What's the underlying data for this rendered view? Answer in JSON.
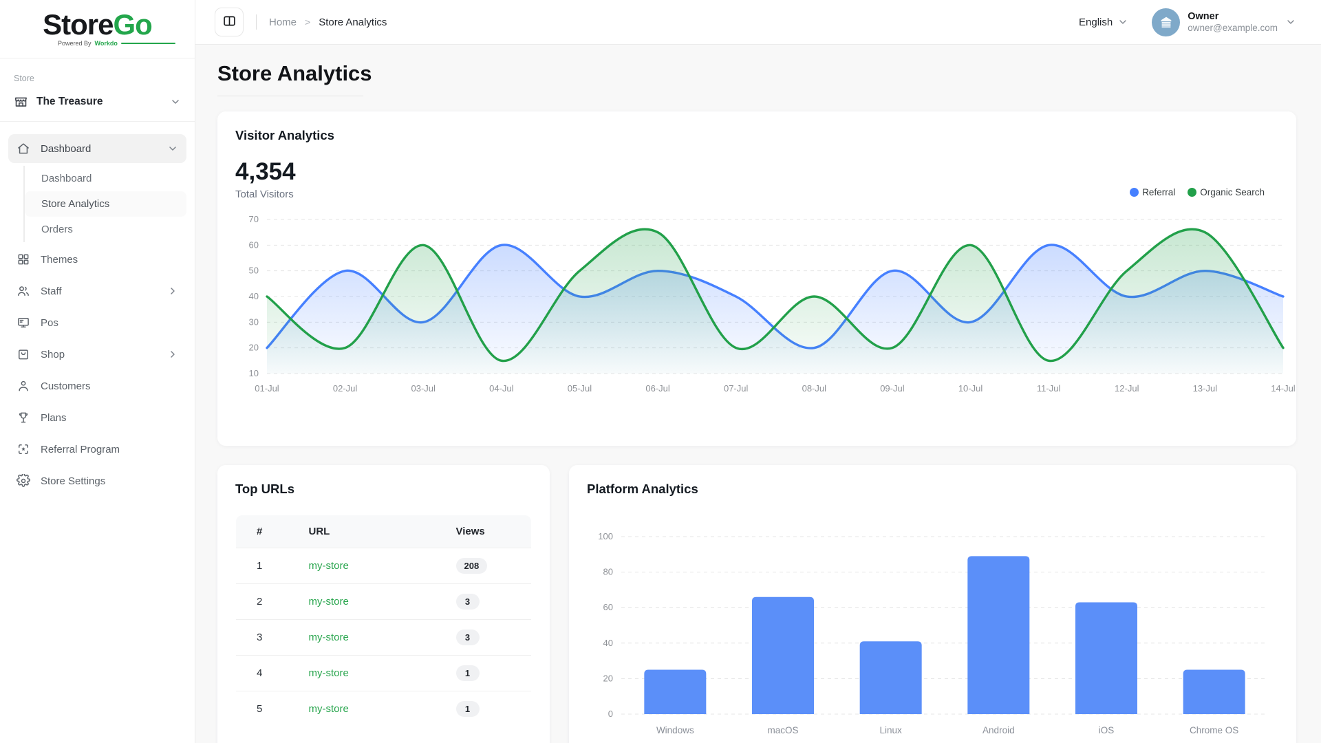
{
  "brand": {
    "name_primary": "Store",
    "name_secondary": "Go",
    "tagline_prefix": "Powered By",
    "tagline_brand": "Workdo"
  },
  "colors": {
    "brand_green": "#23a64b",
    "referral_blue": "#4680ff",
    "organic_green": "#22a04a",
    "bar_blue": "#5b8ff9",
    "grid_gray": "#e4e4e4",
    "tick_gray": "#8e9196"
  },
  "topbar": {
    "breadcrumb": [
      "Home",
      "Store Analytics"
    ],
    "breadcrumb_separator": ">",
    "language": "English",
    "user": {
      "name": "Owner",
      "email": "owner@example.com"
    }
  },
  "sidebar": {
    "section_label": "Store",
    "store_name": "The Treasure",
    "items": [
      {
        "id": "dashboard",
        "label": "Dashboard",
        "icon": "home-icon",
        "chevron": "down",
        "active": true,
        "children": [
          {
            "id": "dashboard-overview",
            "label": "Dashboard",
            "active": false
          },
          {
            "id": "store-analytics",
            "label": "Store Analytics",
            "active": true
          },
          {
            "id": "orders",
            "label": "Orders",
            "active": false
          }
        ]
      },
      {
        "id": "themes",
        "label": "Themes",
        "icon": "grid-icon"
      },
      {
        "id": "staff",
        "label": "Staff",
        "icon": "users-icon",
        "chevron": "right"
      },
      {
        "id": "pos",
        "label": "Pos",
        "icon": "monitor-icon"
      },
      {
        "id": "shop",
        "label": "Shop",
        "icon": "bag-icon",
        "chevron": "right"
      },
      {
        "id": "customers",
        "label": "Customers",
        "icon": "user-icon"
      },
      {
        "id": "plans",
        "label": "Plans",
        "icon": "trophy-icon"
      },
      {
        "id": "referral-program",
        "label": "Referral Program",
        "icon": "referral-icon"
      },
      {
        "id": "store-settings",
        "label": "Store Settings",
        "icon": "gear-icon"
      }
    ]
  },
  "page": {
    "title": "Store Analytics"
  },
  "visitor_card": {
    "title": "Visitor Analytics",
    "total": "4,354",
    "total_label": "Total Visitors",
    "legend": [
      {
        "label": "Referral",
        "color": "#4680ff"
      },
      {
        "label": "Organic Search",
        "color": "#22a04a"
      }
    ]
  },
  "top_urls": {
    "title": "Top URLs",
    "headers": [
      "#",
      "URL",
      "Views"
    ],
    "rows": [
      {
        "rank": "1",
        "url": "my-store",
        "views": "208"
      },
      {
        "rank": "2",
        "url": "my-store",
        "views": "3"
      },
      {
        "rank": "3",
        "url": "my-store",
        "views": "3"
      },
      {
        "rank": "4",
        "url": "my-store",
        "views": "1"
      },
      {
        "rank": "5",
        "url": "my-store",
        "views": "1"
      }
    ]
  },
  "platform_card": {
    "title": "Platform Analytics"
  },
  "chart_data": [
    {
      "type": "line",
      "title": "Visitor Analytics",
      "x": [
        "01-Jul",
        "02-Jul",
        "03-Jul",
        "04-Jul",
        "05-Jul",
        "06-Jul",
        "07-Jul",
        "08-Jul",
        "09-Jul",
        "10-Jul",
        "11-Jul",
        "12-Jul",
        "13-Jul",
        "14-Jul"
      ],
      "series": [
        {
          "name": "Referral",
          "color": "#4680ff",
          "values": [
            20,
            50,
            30,
            60,
            40,
            50,
            40,
            20,
            50,
            30,
            60,
            40,
            50,
            40
          ]
        },
        {
          "name": "Organic Search",
          "color": "#22a04a",
          "values": [
            40,
            20,
            60,
            15,
            50,
            65,
            20,
            40,
            20,
            60,
            15,
            50,
            65,
            20
          ]
        }
      ],
      "ylim": [
        10,
        70
      ],
      "yticks": [
        10,
        20,
        30,
        40,
        50,
        60,
        70
      ],
      "grid": "dashed-horizontal",
      "legend_position": "top-right",
      "style": "smooth-area"
    },
    {
      "type": "bar",
      "title": "Platform Analytics",
      "categories": [
        "Windows",
        "macOS",
        "Linux",
        "Android",
        "iOS",
        "Chrome OS"
      ],
      "values": [
        25,
        66,
        41,
        89,
        63,
        25
      ],
      "ylim": [
        0,
        100
      ],
      "yticks": [
        0,
        20,
        40,
        60,
        80,
        100
      ],
      "grid": "dashed-horizontal",
      "bar_color": "#5b8ff9"
    }
  ]
}
